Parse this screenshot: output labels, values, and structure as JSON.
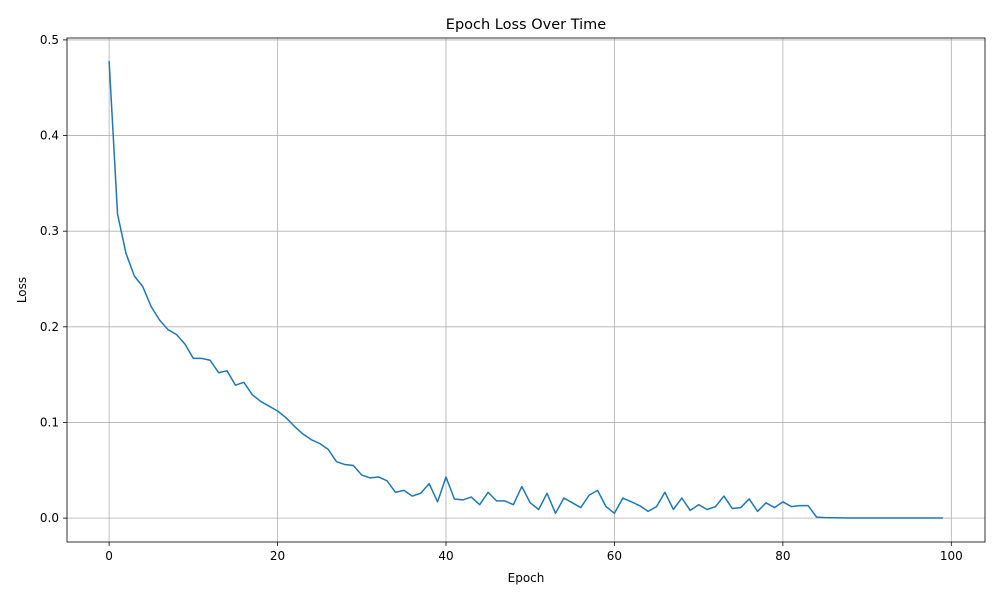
{
  "chart_data": {
    "type": "line",
    "title": "Epoch Loss Over Time",
    "xlabel": "Epoch",
    "ylabel": "Loss",
    "xlim": [
      -5,
      104
    ],
    "ylim": [
      -0.025,
      0.502
    ],
    "grid": true,
    "xticks": [
      0,
      20,
      40,
      60,
      80,
      100
    ],
    "yticks": [
      0.0,
      0.1,
      0.2,
      0.3,
      0.4,
      0.5
    ],
    "line_color": "#1f77b4",
    "x": [
      0,
      1,
      2,
      3,
      4,
      5,
      6,
      7,
      8,
      9,
      10,
      11,
      12,
      13,
      14,
      15,
      16,
      17,
      18,
      19,
      20,
      21,
      22,
      23,
      24,
      25,
      26,
      27,
      28,
      29,
      30,
      31,
      32,
      33,
      34,
      35,
      36,
      37,
      38,
      39,
      40,
      41,
      42,
      43,
      44,
      45,
      46,
      47,
      48,
      49,
      50,
      51,
      52,
      53,
      54,
      55,
      56,
      57,
      58,
      59,
      60,
      61,
      62,
      63,
      64,
      65,
      66,
      67,
      68,
      69,
      70,
      71,
      72,
      73,
      74,
      75,
      76,
      77,
      78,
      79,
      80,
      81,
      82,
      83,
      84,
      85,
      86,
      87,
      88,
      89,
      90,
      91,
      92,
      93,
      94,
      95,
      96,
      97,
      98,
      99
    ],
    "y": [
      0.478,
      0.318,
      0.277,
      0.253,
      0.242,
      0.221,
      0.207,
      0.197,
      0.192,
      0.182,
      0.167,
      0.167,
      0.165,
      0.152,
      0.154,
      0.139,
      0.142,
      0.129,
      0.122,
      0.117,
      0.112,
      0.105,
      0.096,
      0.088,
      0.082,
      0.078,
      0.072,
      0.059,
      0.056,
      0.055,
      0.045,
      0.042,
      0.043,
      0.039,
      0.027,
      0.029,
      0.023,
      0.026,
      0.036,
      0.017,
      0.043,
      0.02,
      0.019,
      0.022,
      0.014,
      0.027,
      0.018,
      0.018,
      0.014,
      0.033,
      0.016,
      0.009,
      0.026,
      0.005,
      0.021,
      0.016,
      0.011,
      0.024,
      0.029,
      0.012,
      0.005,
      0.021,
      0.017,
      0.013,
      0.007,
      0.012,
      0.027,
      0.009,
      0.021,
      0.008,
      0.014,
      0.009,
      0.012,
      0.023,
      0.01,
      0.011,
      0.02,
      0.007,
      0.016,
      0.011,
      0.017,
      0.012,
      0.013,
      0.013,
      0.001,
      0.0005,
      0.0003,
      0.0002,
      0.0001,
      0.0001,
      0.0001,
      0.0001,
      0.0001,
      0.0001,
      0.0001,
      0.0001,
      0.0001,
      0.0001,
      0.0001,
      0.0001
    ]
  }
}
